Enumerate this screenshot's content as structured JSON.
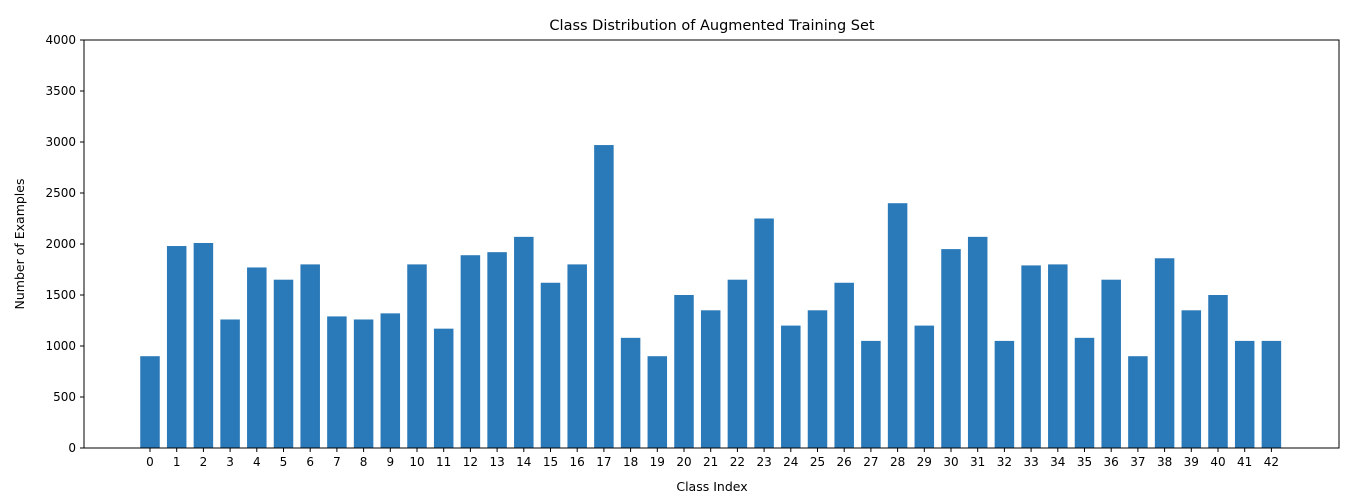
{
  "chart_data": {
    "type": "bar",
    "title": "Class Distribution of Augmented Training Set",
    "xlabel": "Class Index",
    "ylabel": "Number of Examples",
    "ylim": [
      0,
      4000
    ],
    "yticks": [
      0,
      500,
      1000,
      1500,
      2000,
      2500,
      3000,
      3500,
      4000
    ],
    "grid": false,
    "legend": "none",
    "bar_color": "#2a79b8",
    "categories": [
      "0",
      "1",
      "2",
      "3",
      "4",
      "5",
      "6",
      "7",
      "8",
      "9",
      "10",
      "11",
      "12",
      "13",
      "14",
      "15",
      "16",
      "17",
      "18",
      "19",
      "20",
      "21",
      "22",
      "23",
      "24",
      "25",
      "26",
      "27",
      "28",
      "29",
      "30",
      "31",
      "32",
      "33",
      "34",
      "35",
      "36",
      "37",
      "38",
      "39",
      "40",
      "41",
      "42"
    ],
    "values": [
      900,
      1980,
      2010,
      1260,
      1770,
      1650,
      1800,
      1290,
      1260,
      1320,
      1800,
      1170,
      1890,
      1920,
      2070,
      1620,
      1800,
      2970,
      1080,
      900,
      1500,
      1350,
      1650,
      2250,
      1200,
      1350,
      1620,
      1050,
      2400,
      1200,
      1950,
      2070,
      1050,
      1790,
      1800,
      1080,
      1650,
      900,
      1860,
      1350,
      1500,
      1050,
      1050
    ]
  }
}
